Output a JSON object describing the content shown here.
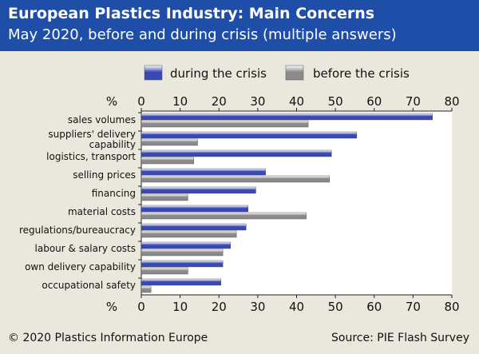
{
  "header": {
    "title": "European Plastics Industry: Main Concerns",
    "subtitle": "May 2020, before and during crisis (multiple answers)"
  },
  "footer": {
    "copyright": "© 2020 Plastics Information Europe",
    "source": "Source: PIE Flash Survey"
  },
  "colors": {
    "header_bg": "#1f4ea8",
    "background": "#eae7dd",
    "during": "#3848b4",
    "before": "#8a8a8a"
  },
  "chart_data": {
    "type": "bar",
    "orientation": "horizontal",
    "axis_unit_label": "%",
    "xlim": [
      0,
      80
    ],
    "x_ticks": [
      0,
      10,
      20,
      30,
      40,
      50,
      60,
      70,
      80
    ],
    "grid": false,
    "legend_position": "top",
    "categories": [
      [
        "sales volumes"
      ],
      [
        "suppliers' delivery",
        "capability"
      ],
      [
        "logistics, transport"
      ],
      [
        "selling prices"
      ],
      [
        "financing"
      ],
      [
        "material costs"
      ],
      [
        "regulations/bureaucracy"
      ],
      [
        "labour & salary costs"
      ],
      [
        "own delivery capability"
      ],
      [
        "occupational safety"
      ]
    ],
    "series": [
      {
        "name": "during the crisis",
        "values": [
          75,
          55.5,
          49,
          32,
          29.5,
          27.5,
          27,
          23,
          21,
          20.5
        ]
      },
      {
        "name": "before the crisis",
        "values": [
          43,
          14.5,
          13.5,
          48.5,
          12,
          42.5,
          24.5,
          21,
          12,
          2.5
        ]
      }
    ]
  }
}
